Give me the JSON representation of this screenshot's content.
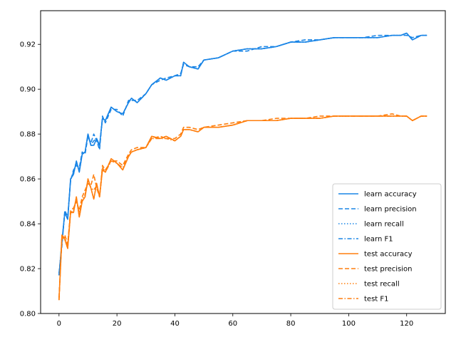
{
  "chart_data": {
    "type": "line",
    "title": "",
    "xlabel": "",
    "ylabel": "",
    "xlim": [
      -6.35,
      133.35
    ],
    "ylim": [
      0.8,
      0.935
    ],
    "xticks": [
      0,
      20,
      40,
      60,
      80,
      100,
      120
    ],
    "yticks": [
      0.8,
      0.82,
      0.84,
      0.86,
      0.88,
      0.9,
      0.92
    ],
    "ytick_labels": [
      "0.80",
      "0.82",
      "0.84",
      "0.86",
      "0.88",
      "0.90",
      "0.92"
    ],
    "grid": false,
    "legend_position": "lower right",
    "colors": {
      "learn": "#1f77b4",
      "test": "#ff7f0e",
      "learn_bright": "#1a85e6",
      "test_bright": "#ff7f0e"
    },
    "x_anchors": [
      0,
      1,
      2,
      3,
      4,
      5,
      6,
      7,
      8,
      9,
      10,
      11,
      12,
      13,
      14,
      15,
      16,
      18,
      20,
      22,
      24,
      25,
      27,
      30,
      32,
      35,
      37,
      40,
      42,
      43,
      45,
      48,
      50,
      55,
      60,
      65,
      70,
      75,
      80,
      85,
      90,
      95,
      100,
      105,
      110,
      115,
      118,
      120,
      122,
      125,
      127
    ],
    "series": [
      {
        "name": "learn accuracy",
        "group": "learn",
        "style": "solid",
        "values": [
          0.817,
          0.832,
          0.845,
          0.842,
          0.86,
          0.862,
          0.868,
          0.863,
          0.871,
          0.872,
          0.88,
          0.875,
          0.875,
          0.878,
          0.875,
          0.887,
          0.886,
          0.892,
          0.89,
          0.889,
          0.894,
          0.896,
          0.894,
          0.898,
          0.902,
          0.905,
          0.904,
          0.906,
          0.906,
          0.912,
          0.91,
          0.909,
          0.913,
          0.914,
          0.917,
          0.918,
          0.918,
          0.919,
          0.921,
          0.921,
          0.922,
          0.923,
          0.923,
          0.923,
          0.923,
          0.924,
          0.924,
          0.925,
          0.922,
          0.924,
          0.924
        ]
      },
      {
        "name": "learn precision",
        "group": "learn",
        "style": "dashed",
        "values": [
          0.818,
          0.83,
          0.846,
          0.843,
          0.859,
          0.864,
          0.866,
          0.865,
          0.872,
          0.871,
          0.879,
          0.876,
          0.88,
          0.877,
          0.873,
          0.888,
          0.885,
          0.891,
          0.891,
          0.888,
          0.895,
          0.895,
          0.895,
          0.898,
          0.902,
          0.904,
          0.905,
          0.906,
          0.907,
          0.911,
          0.91,
          0.91,
          0.913,
          0.914,
          0.917,
          0.917,
          0.919,
          0.919,
          0.921,
          0.922,
          0.922,
          0.923,
          0.923,
          0.923,
          0.924,
          0.924,
          0.924,
          0.924,
          0.923,
          0.924,
          0.924
        ]
      },
      {
        "name": "learn recall",
        "group": "learn",
        "style": "dotted",
        "values": [
          0.817,
          0.832,
          0.845,
          0.842,
          0.86,
          0.862,
          0.868,
          0.863,
          0.871,
          0.872,
          0.88,
          0.875,
          0.875,
          0.878,
          0.875,
          0.887,
          0.886,
          0.892,
          0.89,
          0.889,
          0.894,
          0.896,
          0.894,
          0.898,
          0.902,
          0.905,
          0.904,
          0.906,
          0.906,
          0.912,
          0.91,
          0.909,
          0.913,
          0.914,
          0.917,
          0.918,
          0.918,
          0.919,
          0.921,
          0.921,
          0.922,
          0.923,
          0.923,
          0.923,
          0.923,
          0.924,
          0.924,
          0.925,
          0.922,
          0.924,
          0.924
        ]
      },
      {
        "name": "learn F1",
        "group": "learn",
        "style": "dashdot",
        "values": [
          0.817,
          0.831,
          0.845,
          0.842,
          0.86,
          0.863,
          0.867,
          0.864,
          0.871,
          0.872,
          0.88,
          0.875,
          0.877,
          0.878,
          0.874,
          0.887,
          0.886,
          0.892,
          0.89,
          0.889,
          0.894,
          0.896,
          0.894,
          0.898,
          0.902,
          0.905,
          0.904,
          0.906,
          0.906,
          0.912,
          0.91,
          0.909,
          0.913,
          0.914,
          0.917,
          0.918,
          0.918,
          0.919,
          0.921,
          0.921,
          0.922,
          0.923,
          0.923,
          0.923,
          0.923,
          0.924,
          0.924,
          0.925,
          0.922,
          0.924,
          0.924
        ]
      },
      {
        "name": "test accuracy",
        "group": "test",
        "style": "solid",
        "values": [
          0.806,
          0.835,
          0.833,
          0.829,
          0.845,
          0.845,
          0.852,
          0.843,
          0.85,
          0.852,
          0.86,
          0.856,
          0.851,
          0.858,
          0.852,
          0.864,
          0.863,
          0.869,
          0.867,
          0.864,
          0.87,
          0.872,
          0.873,
          0.874,
          0.879,
          0.878,
          0.879,
          0.877,
          0.879,
          0.882,
          0.882,
          0.881,
          0.883,
          0.883,
          0.884,
          0.886,
          0.886,
          0.886,
          0.887,
          0.887,
          0.887,
          0.888,
          0.888,
          0.888,
          0.888,
          0.888,
          0.888,
          0.888,
          0.886,
          0.888,
          0.888
        ]
      },
      {
        "name": "test precision",
        "group": "test",
        "style": "dashed",
        "values": [
          0.807,
          0.833,
          0.835,
          0.831,
          0.846,
          0.847,
          0.85,
          0.846,
          0.852,
          0.855,
          0.858,
          0.857,
          0.862,
          0.856,
          0.852,
          0.866,
          0.864,
          0.868,
          0.868,
          0.866,
          0.871,
          0.873,
          0.874,
          0.874,
          0.878,
          0.879,
          0.878,
          0.878,
          0.88,
          0.883,
          0.883,
          0.882,
          0.883,
          0.884,
          0.885,
          0.886,
          0.886,
          0.887,
          0.887,
          0.887,
          0.888,
          0.888,
          0.888,
          0.888,
          0.888,
          0.889,
          0.888,
          0.888,
          0.886,
          0.888,
          0.888
        ]
      },
      {
        "name": "test recall",
        "group": "test",
        "style": "dotted",
        "values": [
          0.806,
          0.835,
          0.833,
          0.829,
          0.845,
          0.845,
          0.852,
          0.843,
          0.85,
          0.852,
          0.86,
          0.856,
          0.851,
          0.858,
          0.852,
          0.864,
          0.863,
          0.869,
          0.867,
          0.864,
          0.87,
          0.872,
          0.873,
          0.874,
          0.879,
          0.878,
          0.879,
          0.877,
          0.879,
          0.882,
          0.882,
          0.881,
          0.883,
          0.883,
          0.884,
          0.886,
          0.886,
          0.886,
          0.887,
          0.887,
          0.887,
          0.888,
          0.888,
          0.888,
          0.888,
          0.888,
          0.888,
          0.888,
          0.886,
          0.888,
          0.888
        ]
      },
      {
        "name": "test F1",
        "group": "test",
        "style": "dashdot",
        "values": [
          0.806,
          0.834,
          0.834,
          0.83,
          0.845,
          0.846,
          0.851,
          0.844,
          0.851,
          0.853,
          0.859,
          0.856,
          0.855,
          0.857,
          0.852,
          0.865,
          0.863,
          0.868,
          0.867,
          0.865,
          0.87,
          0.872,
          0.873,
          0.874,
          0.878,
          0.878,
          0.878,
          0.877,
          0.879,
          0.882,
          0.882,
          0.881,
          0.883,
          0.883,
          0.884,
          0.886,
          0.886,
          0.886,
          0.887,
          0.887,
          0.887,
          0.888,
          0.888,
          0.888,
          0.888,
          0.888,
          0.888,
          0.888,
          0.886,
          0.888,
          0.888
        ]
      }
    ]
  }
}
